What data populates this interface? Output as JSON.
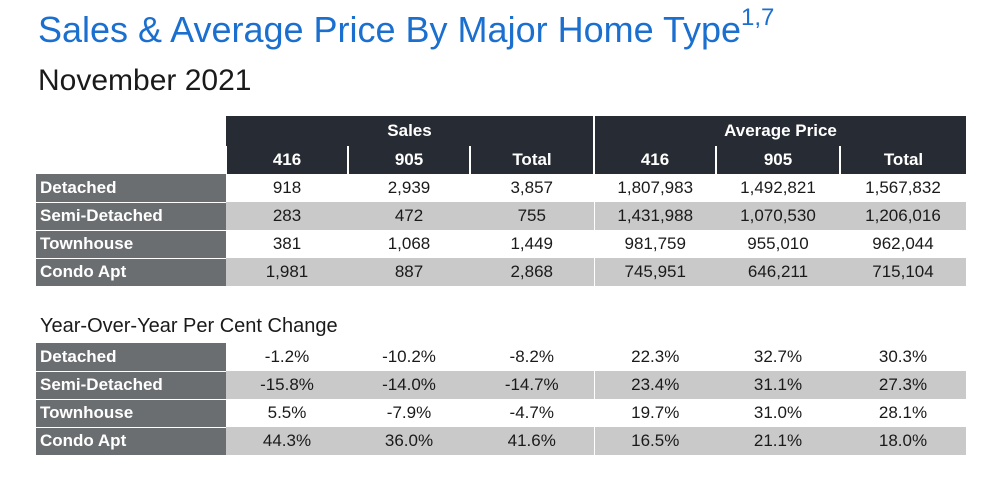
{
  "title": "Sales & Average Price By Major Home Type",
  "title_superscript": "1,7",
  "subtitle": "November 2021",
  "table1": {
    "group_headers": [
      "Sales",
      "Average Price"
    ],
    "column_headers": [
      "416",
      "905",
      "Total",
      "416",
      "905",
      "Total"
    ],
    "rows": [
      {
        "label": "Detached",
        "values": [
          "918",
          "2,939",
          "3,857",
          "1,807,983",
          "1,492,821",
          "1,567,832"
        ]
      },
      {
        "label": "Semi-Detached",
        "values": [
          "283",
          "472",
          "755",
          "1,431,988",
          "1,070,530",
          "1,206,016"
        ]
      },
      {
        "label": "Townhouse",
        "values": [
          "381",
          "1,068",
          "1,449",
          "981,759",
          "955,010",
          "962,044"
        ]
      },
      {
        "label": "Condo Apt",
        "values": [
          "1,981",
          "887",
          "2,868",
          "745,951",
          "646,211",
          "715,104"
        ]
      }
    ]
  },
  "yoy": {
    "title": "Year-Over-Year Per Cent Change",
    "rows": [
      {
        "label": "Detached",
        "values": [
          "-1.2%",
          "-10.2%",
          "-8.2%",
          "22.3%",
          "32.7%",
          "30.3%"
        ]
      },
      {
        "label": "Semi-Detached",
        "values": [
          "-15.8%",
          "-14.0%",
          "-14.7%",
          "23.4%",
          "31.1%",
          "27.3%"
        ]
      },
      {
        "label": "Townhouse",
        "values": [
          "5.5%",
          "-7.9%",
          "-4.7%",
          "19.7%",
          "31.0%",
          "28.1%"
        ]
      },
      {
        "label": "Condo Apt",
        "values": [
          "44.3%",
          "36.0%",
          "41.6%",
          "16.5%",
          "21.1%",
          "18.0%"
        ]
      }
    ]
  },
  "colors": {
    "title": "#1a6fcf",
    "header_bg": "#272b33",
    "rowhead_bg": "#6b6e70",
    "shade_row": "#c9c9c9"
  }
}
